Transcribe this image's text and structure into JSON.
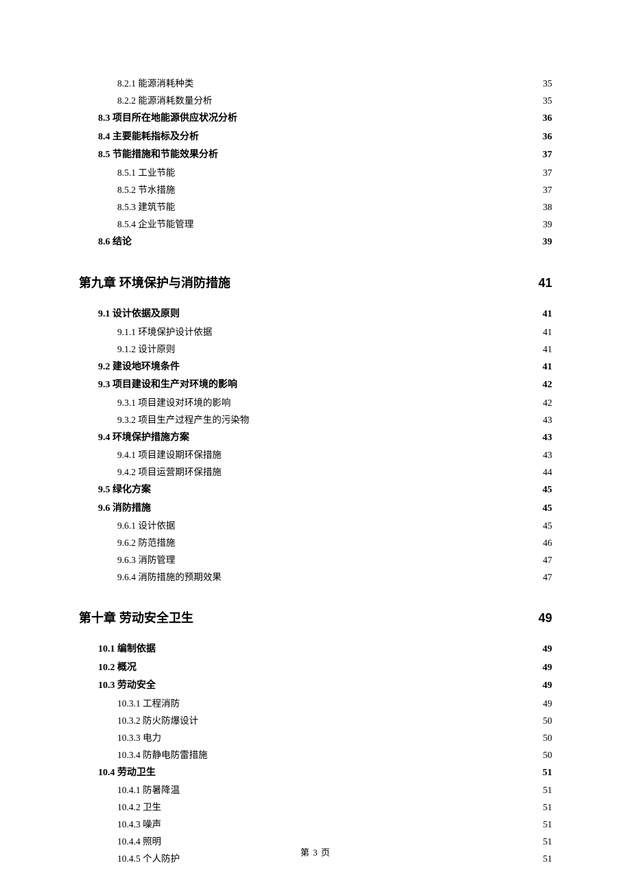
{
  "footer": "第 3 页",
  "entries": [
    {
      "level": 3,
      "label": "8.2.1 能源消耗种类",
      "page": "35"
    },
    {
      "level": 3,
      "label": "8.2.2 能源消耗数量分析",
      "page": "35"
    },
    {
      "level": 2,
      "label": "8.3 项目所在地能源供应状况分析",
      "page": "36"
    },
    {
      "level": 2,
      "label": "8.4 主要能耗指标及分析",
      "page": "36"
    },
    {
      "level": 2,
      "label": "8.5 节能措施和节能效果分析",
      "page": "37"
    },
    {
      "level": 3,
      "label": "8.5.1 工业节能",
      "page": "37"
    },
    {
      "level": 3,
      "label": "8.5.2 节水措施",
      "page": "37"
    },
    {
      "level": 3,
      "label": "8.5.3 建筑节能",
      "page": "38"
    },
    {
      "level": 3,
      "label": "8.5.4 企业节能管理",
      "page": "39"
    },
    {
      "level": 2,
      "label": "8.6 结论",
      "page": "39"
    },
    {
      "level": 1,
      "label": "第九章  环境保护与消防措施",
      "page": "41"
    },
    {
      "level": 2,
      "label": "9.1 设计依据及原则",
      "page": "41"
    },
    {
      "level": 3,
      "label": "9.1.1 环境保护设计依据",
      "page": "41"
    },
    {
      "level": 3,
      "label": "9.1.2 设计原则",
      "page": "41"
    },
    {
      "level": 2,
      "label": "9.2 建设地环境条件",
      "page": "41"
    },
    {
      "level": 2,
      "label": "9.3  项目建设和生产对环境的影响",
      "page": "42"
    },
    {
      "level": 3,
      "label": "9.3.1  项目建设对环境的影响",
      "page": "42"
    },
    {
      "level": 3,
      "label": "9.3.2  项目生产过程产生的污染物",
      "page": "43"
    },
    {
      "level": 2,
      "label": "9.4  环境保护措施方案",
      "page": "43"
    },
    {
      "level": 3,
      "label": "9.4.1  项目建设期环保措施",
      "page": "43"
    },
    {
      "level": 3,
      "label": "9.4.2  项目运营期环保措施",
      "page": "44"
    },
    {
      "level": 2,
      "label": "9.5 绿化方案",
      "page": "45"
    },
    {
      "level": 2,
      "label": "9.6 消防措施",
      "page": "45"
    },
    {
      "level": 3,
      "label": "9.6.1 设计依据",
      "page": "45"
    },
    {
      "level": 3,
      "label": "9.6.2 防范措施",
      "page": "46"
    },
    {
      "level": 3,
      "label": "9.6.3 消防管理",
      "page": "47"
    },
    {
      "level": 3,
      "label": "9.6.4 消防措施的预期效果",
      "page": "47"
    },
    {
      "level": 1,
      "label": "第十章  劳动安全卫生",
      "page": "49"
    },
    {
      "level": 2,
      "label": "10.1  编制依据",
      "page": "49"
    },
    {
      "level": 2,
      "label": "10.2 概况",
      "page": "49"
    },
    {
      "level": 2,
      "label": "10.3  劳动安全",
      "page": "49"
    },
    {
      "level": 3,
      "label": "10.3.1 工程消防",
      "page": "49"
    },
    {
      "level": 3,
      "label": "10.3.2 防火防爆设计",
      "page": "50"
    },
    {
      "level": 3,
      "label": "10.3.3 电力",
      "page": "50"
    },
    {
      "level": 3,
      "label": "10.3.4 防静电防雷措施",
      "page": "50"
    },
    {
      "level": 2,
      "label": "10.4 劳动卫生",
      "page": "51"
    },
    {
      "level": 3,
      "label": "10.4.1 防暑降温",
      "page": "51"
    },
    {
      "level": 3,
      "label": "10.4.2 卫生",
      "page": "51"
    },
    {
      "level": 3,
      "label": "10.4.3 噪声",
      "page": "51"
    },
    {
      "level": 3,
      "label": "10.4.4 照明",
      "page": "51"
    },
    {
      "level": 3,
      "label": "10.4.5 个人防护",
      "page": "51"
    }
  ]
}
